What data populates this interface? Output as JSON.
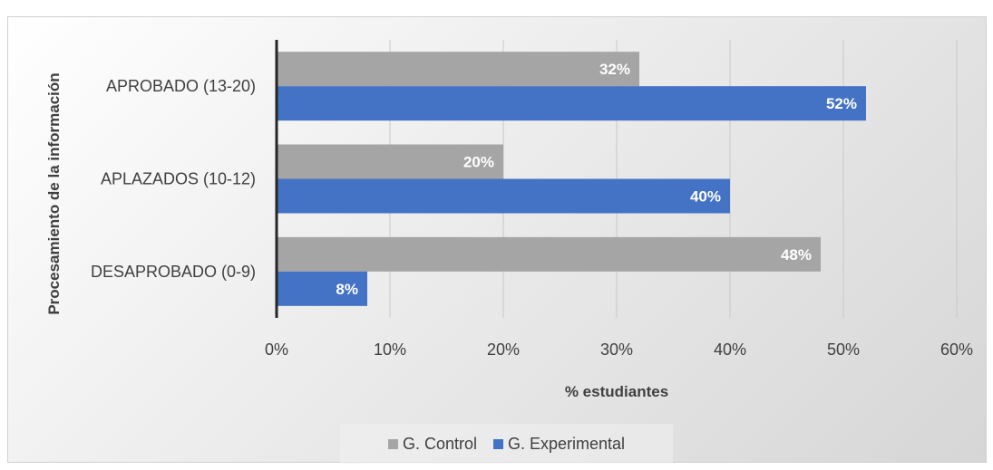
{
  "chart_data": {
    "type": "bar",
    "orientation": "horizontal",
    "categories": [
      "APROBADO (13-20)",
      "APLAZADOS (10-12)",
      "DESAPROBADO (0-9)"
    ],
    "series": [
      {
        "name": "G. Control",
        "color": "#a5a5a5",
        "values": [
          32,
          20,
          48
        ],
        "labels": [
          "32%",
          "20%",
          "48%"
        ]
      },
      {
        "name": "G. Experimental",
        "color": "#4472c4",
        "values": [
          52,
          40,
          8
        ],
        "labels": [
          "52%",
          "40%",
          "8%"
        ]
      }
    ],
    "xlabel": "% estudiantes",
    "ylabel": "Procesamiento de la información",
    "xlim": [
      0,
      60
    ],
    "xticks": [
      "0%",
      "10%",
      "20%",
      "30%",
      "40%",
      "50%",
      "60%"
    ],
    "grid": true,
    "legend_position": "bottom"
  }
}
